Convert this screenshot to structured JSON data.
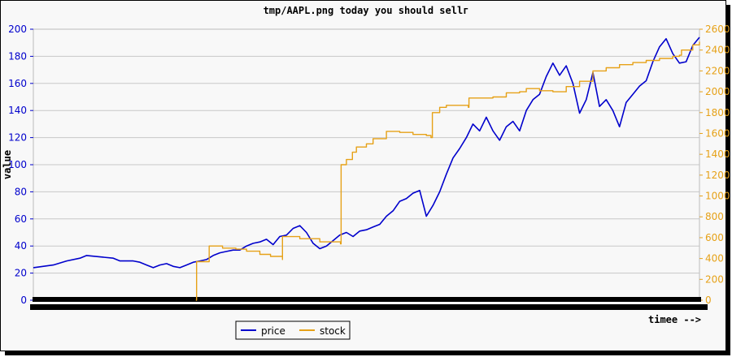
{
  "chart_data": {
    "type": "line",
    "title": "tmp/AAPL.png today you should sellг",
    "xlabel": "timee -->",
    "ylabel": "value",
    "y_left": {
      "min": 0,
      "max": 200,
      "ticks": [
        "0",
        "20",
        "40",
        "60",
        "80",
        "100",
        "120",
        "140",
        "160",
        "180",
        "200"
      ]
    },
    "y_right": {
      "min": 0,
      "max": 2600,
      "ticks": [
        "0",
        "200",
        "400",
        "600",
        "800",
        "1000",
        "1200",
        "1400",
        "1600",
        "1800",
        "2000",
        "2200",
        "2400",
        "2600"
      ]
    },
    "grid": true,
    "legend_position": "bottom-left",
    "x_range": [
      0,
      100
    ],
    "series": [
      {
        "name": "price",
        "axis": "left",
        "color": "#0000cc",
        "points": [
          [
            0,
            24
          ],
          [
            3,
            26
          ],
          [
            5,
            29
          ],
          [
            7,
            31
          ],
          [
            8,
            33
          ],
          [
            10,
            32
          ],
          [
            12,
            31
          ],
          [
            13,
            29
          ],
          [
            15,
            29
          ],
          [
            16,
            28
          ],
          [
            17,
            26
          ],
          [
            18,
            24
          ],
          [
            19,
            26
          ],
          [
            20,
            27
          ],
          [
            21,
            25
          ],
          [
            22,
            24
          ],
          [
            23,
            26
          ],
          [
            24,
            28
          ],
          [
            25,
            29
          ],
          [
            26,
            30
          ],
          [
            27,
            33
          ],
          [
            28,
            35
          ],
          [
            29,
            36
          ],
          [
            30,
            37
          ],
          [
            31,
            37
          ],
          [
            32,
            40
          ],
          [
            33,
            42
          ],
          [
            34,
            43
          ],
          [
            35,
            45
          ],
          [
            36,
            41
          ],
          [
            37,
            47
          ],
          [
            38,
            48
          ],
          [
            39,
            53
          ],
          [
            40,
            55
          ],
          [
            41,
            50
          ],
          [
            42,
            42
          ],
          [
            43,
            38
          ],
          [
            44,
            40
          ],
          [
            45,
            44
          ],
          [
            46,
            48
          ],
          [
            47,
            50
          ],
          [
            48,
            47
          ],
          [
            49,
            51
          ],
          [
            50,
            52
          ],
          [
            51,
            54
          ],
          [
            52,
            56
          ],
          [
            53,
            62
          ],
          [
            54,
            66
          ],
          [
            55,
            73
          ],
          [
            56,
            75
          ],
          [
            57,
            79
          ],
          [
            58,
            81
          ],
          [
            59,
            62
          ],
          [
            60,
            70
          ],
          [
            61,
            80
          ],
          [
            62,
            93
          ],
          [
            63,
            105
          ],
          [
            64,
            112
          ],
          [
            65,
            120
          ],
          [
            66,
            130
          ],
          [
            67,
            125
          ],
          [
            68,
            135
          ],
          [
            69,
            125
          ],
          [
            70,
            118
          ],
          [
            71,
            128
          ],
          [
            72,
            132
          ],
          [
            73,
            125
          ],
          [
            74,
            140
          ],
          [
            75,
            148
          ],
          [
            76,
            152
          ],
          [
            77,
            165
          ],
          [
            78,
            175
          ],
          [
            79,
            166
          ],
          [
            80,
            173
          ],
          [
            81,
            160
          ],
          [
            82,
            138
          ],
          [
            83,
            148
          ],
          [
            84,
            168
          ],
          [
            85,
            143
          ],
          [
            86,
            148
          ],
          [
            87,
            140
          ],
          [
            88,
            128
          ],
          [
            89,
            146
          ],
          [
            90,
            152
          ],
          [
            91,
            158
          ],
          [
            92,
            162
          ],
          [
            93,
            176
          ],
          [
            94,
            187
          ],
          [
            95,
            193
          ],
          [
            96,
            182
          ],
          [
            97,
            175
          ],
          [
            98,
            176
          ],
          [
            99,
            188
          ],
          [
            100,
            194
          ]
        ]
      },
      {
        "name": "stock",
        "axis": "right",
        "color": "#e6a117",
        "points": [
          [
            24.4,
            0
          ],
          [
            24.5,
            370
          ],
          [
            26.4,
            370
          ],
          [
            26.4,
            520
          ],
          [
            28.4,
            500
          ],
          [
            30.4,
            490
          ],
          [
            32,
            470
          ],
          [
            34,
            440
          ],
          [
            35.6,
            420
          ],
          [
            37.4,
            390
          ],
          [
            37.4,
            610
          ],
          [
            40,
            590
          ],
          [
            43,
            560
          ],
          [
            46.1,
            540
          ],
          [
            46.2,
            1300
          ],
          [
            47,
            1350
          ],
          [
            47.9,
            1420
          ],
          [
            48.5,
            1470
          ],
          [
            50,
            1500
          ],
          [
            51,
            1550
          ],
          [
            53,
            1620
          ],
          [
            55,
            1610
          ],
          [
            57,
            1590
          ],
          [
            59,
            1580
          ],
          [
            59.7,
            1560
          ],
          [
            59.9,
            1800
          ],
          [
            61,
            1850
          ],
          [
            62,
            1870
          ],
          [
            64,
            1870
          ],
          [
            65.3,
            1850
          ],
          [
            65.4,
            1940
          ],
          [
            67,
            1940
          ],
          [
            69,
            1950
          ],
          [
            71,
            1990
          ],
          [
            73,
            2000
          ],
          [
            74,
            2030
          ],
          [
            76,
            2010
          ],
          [
            78,
            2000
          ],
          [
            80,
            2050
          ],
          [
            82,
            2100
          ],
          [
            84,
            2200
          ],
          [
            86,
            2230
          ],
          [
            88,
            2260
          ],
          [
            90,
            2280
          ],
          [
            92,
            2300
          ],
          [
            94,
            2320
          ],
          [
            96,
            2340
          ],
          [
            97,
            2350
          ],
          [
            97.3,
            2400
          ],
          [
            98,
            2400
          ],
          [
            99,
            2450
          ],
          [
            100,
            2480
          ]
        ]
      }
    ]
  }
}
